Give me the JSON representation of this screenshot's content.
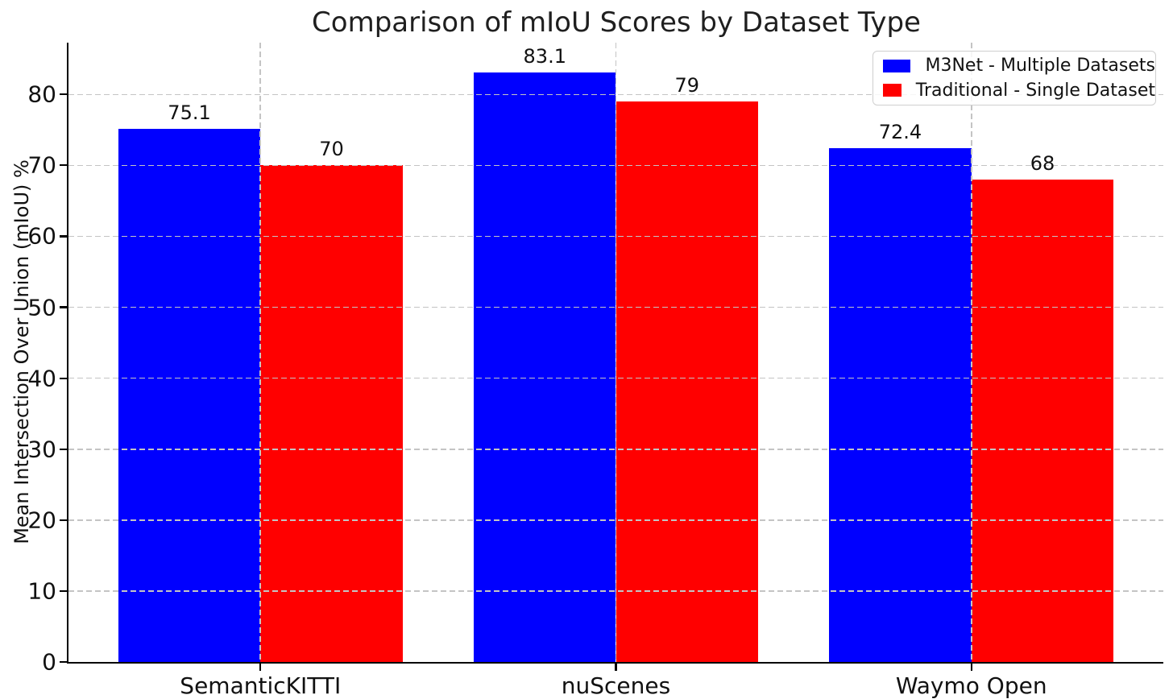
{
  "chart_data": {
    "type": "bar",
    "title": "Comparison of mIoU Scores by Dataset Type",
    "xlabel": "",
    "ylabel": "Mean Intersection Over Union (mIoU) %",
    "categories": [
      "SemanticKITTI",
      "nuScenes",
      "Waymo Open"
    ],
    "series": [
      {
        "name": "M3Net - Multiple Datasets",
        "color": "#0000ff",
        "values": [
          75.1,
          83.1,
          72.4
        ],
        "value_labels": [
          "75.1",
          "83.1",
          "72.4"
        ]
      },
      {
        "name": "Traditional - Single Dataset",
        "color": "#ff0000",
        "values": [
          70,
          79,
          68
        ],
        "value_labels": [
          "70",
          "79",
          "68"
        ]
      }
    ],
    "yticks": [
      0,
      10,
      20,
      30,
      40,
      50,
      60,
      70,
      80
    ],
    "ylim": [
      0,
      87.3
    ],
    "xlim": [
      -0.54,
      2.54
    ],
    "bar_width": 0.4,
    "grid": true,
    "grid_style": "dashed",
    "grid_above_bars": true,
    "legend_position": "upper right"
  },
  "colors": {
    "bar_blue": "#0000ff",
    "bar_red": "#ff0000",
    "grid": "#c4c4c4",
    "spine": "#000000",
    "text": "#111111",
    "background": "#ffffff",
    "legend_border": "#cfcfcf"
  }
}
